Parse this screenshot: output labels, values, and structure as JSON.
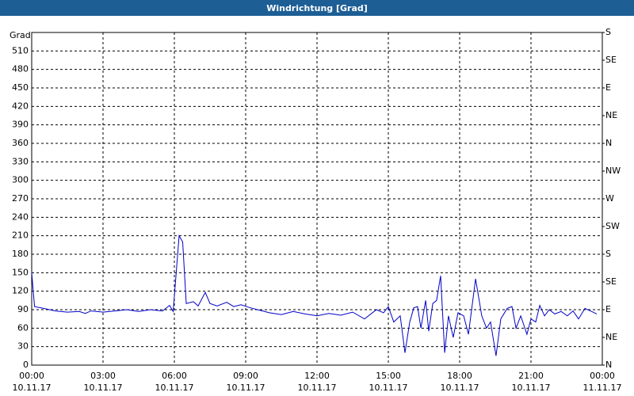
{
  "chart_data": {
    "type": "line",
    "title": "Windrichtung [Grad]",
    "ylabel": "Grad",
    "color": "#0000c8",
    "grid": true,
    "x": [
      0,
      0.12,
      0.5,
      1.0,
      1.5,
      2.0,
      2.25,
      2.5,
      3.0,
      3.5,
      4.0,
      4.5,
      5.0,
      5.5,
      5.8,
      5.95,
      6.2,
      6.35,
      6.5,
      6.8,
      7.0,
      7.3,
      7.5,
      7.8,
      8.2,
      8.5,
      8.8,
      9.2,
      9.5,
      10.0,
      10.5,
      11.0,
      11.5,
      12.0,
      12.5,
      13.0,
      13.5,
      14.0,
      14.5,
      14.8,
      15.0,
      15.23,
      15.5,
      15.7,
      15.9,
      16.07,
      16.23,
      16.37,
      16.57,
      16.7,
      16.87,
      17.03,
      17.2,
      17.37,
      17.53,
      17.73,
      17.93,
      18.17,
      18.37,
      18.67,
      18.93,
      19.13,
      19.3,
      19.53,
      19.73,
      20.0,
      20.2,
      20.37,
      20.57,
      20.83,
      21.0,
      21.2,
      21.37,
      21.57,
      21.77,
      22.0,
      22.27,
      22.53,
      22.77,
      23.0,
      23.27,
      23.5,
      23.77
    ],
    "values": [
      150,
      95,
      92,
      88,
      86,
      87,
      84,
      88,
      86,
      88,
      90,
      87,
      90,
      88,
      97,
      87,
      210,
      200,
      100,
      103,
      96,
      118,
      100,
      96,
      102,
      95,
      98,
      93,
      90,
      85,
      82,
      87,
      83,
      80,
      84,
      81,
      86,
      75,
      90,
      85,
      95,
      70,
      80,
      20,
      70,
      93,
      95,
      60,
      105,
      55,
      100,
      105,
      145,
      20,
      80,
      45,
      85,
      80,
      50,
      140,
      80,
      60,
      70,
      15,
      75,
      92,
      95,
      60,
      80,
      50,
      75,
      70,
      97,
      80,
      90,
      83,
      87,
      80,
      88,
      75,
      92,
      88,
      83
    ],
    "xlim": [
      0,
      24
    ],
    "xticks": [
      {
        "value": 0,
        "label": "00:00",
        "date": "10.11.17"
      },
      {
        "value": 3,
        "label": "03:00",
        "date": "10.11.17"
      },
      {
        "value": 6,
        "label": "06:00",
        "date": "10.11.17"
      },
      {
        "value": 9,
        "label": "09:00",
        "date": "10.11.17"
      },
      {
        "value": 12,
        "label": "12:00",
        "date": "10.11.17"
      },
      {
        "value": 15,
        "label": "15:00",
        "date": "10.11.17"
      },
      {
        "value": 18,
        "label": "18:00",
        "date": "10.11.17"
      },
      {
        "value": 21,
        "label": "21:00",
        "date": "10.11.17"
      },
      {
        "value": 24,
        "label": "00:00",
        "date": "11.11.17"
      }
    ],
    "ylim": [
      0,
      540
    ],
    "yticks": [
      0,
      30,
      60,
      90,
      120,
      150,
      180,
      210,
      240,
      270,
      300,
      330,
      360,
      390,
      420,
      450,
      480,
      510
    ],
    "y2lim": [
      0,
      540
    ],
    "y2ticks": [
      {
        "value": 0,
        "label": "N"
      },
      {
        "value": 45,
        "label": "NE"
      },
      {
        "value": 90,
        "label": "E"
      },
      {
        "value": 135,
        "label": "SE"
      },
      {
        "value": 180,
        "label": "S"
      },
      {
        "value": 225,
        "label": "SW"
      },
      {
        "value": 270,
        "label": "W"
      },
      {
        "value": 315,
        "label": "NW"
      },
      {
        "value": 360,
        "label": "N"
      },
      {
        "value": 405,
        "label": "NE"
      },
      {
        "value": 450,
        "label": "E"
      },
      {
        "value": 495,
        "label": "SE"
      },
      {
        "value": 540,
        "label": "S"
      }
    ]
  }
}
